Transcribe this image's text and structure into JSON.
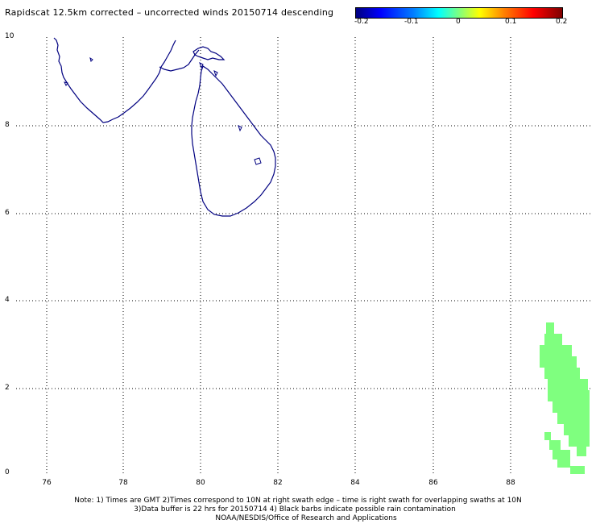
{
  "title": "Rapidscat 12.5km corrected – uncorrected winds 20150714 descending",
  "colorbar": {
    "ticks": [
      "-0.2",
      "-0.1",
      "0",
      "0.1",
      "0.2"
    ],
    "colors": [
      "#00007f",
      "#0000ff",
      "#00ffff",
      "#7fff7f",
      "#ffff00",
      "#ff0000",
      "#7f0000"
    ]
  },
  "axes": {
    "lat_labels": [
      "10",
      "8",
      "6",
      "4",
      "2",
      "0"
    ],
    "lon_labels": [
      "76",
      "78",
      "80",
      "82",
      "84",
      "86",
      "88"
    ]
  },
  "coast_color": "#000080",
  "swath_color": "#7fff7f",
  "notes": [
    "Note: 1) Times are GMT 2)Times correspond to 10N at right swath edge – time is right swath for overlapping swaths at 10N",
    "3)Data buffer is 22 hrs for 20150714 4) Black barbs indicate possible rain contamination",
    "NOAA/NESDIS/Office of Research and Applications"
  ]
}
